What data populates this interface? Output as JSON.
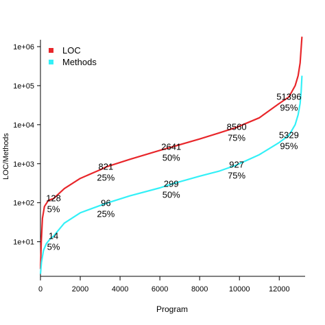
{
  "chart_data": {
    "type": "line",
    "xlabel": "Program",
    "ylabel": "LOC/Methods",
    "xlim": [
      0,
      13300
    ],
    "ylim": [
      1.3,
      1500000
    ],
    "y_scale": "log",
    "x_ticks": [
      0,
      2000,
      4000,
      6000,
      8000,
      10000,
      12000
    ],
    "x_tick_labels": [
      "0",
      "2000",
      "4000",
      "6000",
      "8000",
      "10000",
      "12000"
    ],
    "y_ticks": [
      10,
      100,
      1000,
      10000,
      100000,
      1000000
    ],
    "y_tick_labels": [
      "1e+01",
      "1e+02",
      "1e+03",
      "1e+04",
      "1e+05",
      "1e+06"
    ],
    "legend_position": "top-left",
    "series": [
      {
        "name": "LOC",
        "color": "#e8262a",
        "x": [
          0,
          40,
          100,
          200,
          400,
          657,
          1200,
          2000,
          3000,
          3286,
          4500,
          6000,
          6572,
          8000,
          9000,
          9858,
          11000,
          12000,
          12486,
          12800,
          12950,
          13050,
          13100,
          13140
        ],
        "y": [
          2,
          10,
          40,
          80,
          115,
          128,
          230,
          420,
          700,
          821,
          1300,
          2200,
          2641,
          4300,
          6200,
          8560,
          15000,
          35000,
          51396,
          100000,
          180000,
          380000,
          900000,
          1800000
        ]
      },
      {
        "name": "Methods",
        "color": "#33f0f7",
        "x": [
          0,
          50,
          150,
          300,
          500,
          657,
          1200,
          2000,
          3000,
          3286,
          4500,
          6000,
          6572,
          8000,
          9000,
          9858,
          11000,
          12000,
          12486,
          12800,
          12950,
          13050,
          13100,
          13140
        ],
        "y": [
          1.5,
          3,
          6,
          9,
          12,
          14,
          30,
          55,
          85,
          96,
          150,
          240,
          299,
          480,
          650,
          927,
          1700,
          3500,
          5329,
          10000,
          18000,
          35000,
          70000,
          180000
        ]
      }
    ],
    "annotations": [
      {
        "value": "128",
        "pct": "5%",
        "x": 657,
        "y": 128
      },
      {
        "value": "821",
        "pct": "25%",
        "x": 3286,
        "y": 821
      },
      {
        "value": "2641",
        "pct": "50%",
        "x": 6572,
        "y": 2641
      },
      {
        "value": "8560",
        "pct": "75%",
        "x": 9858,
        "y": 8560
      },
      {
        "value": "51396",
        "pct": "95%",
        "x": 12486,
        "y": 51396
      },
      {
        "value": "14",
        "pct": "5%",
        "x": 657,
        "y": 14
      },
      {
        "value": "96",
        "pct": "25%",
        "x": 3286,
        "y": 96
      },
      {
        "value": "299",
        "pct": "50%",
        "x": 6572,
        "y": 299
      },
      {
        "value": "927",
        "pct": "75%",
        "x": 9858,
        "y": 927
      },
      {
        "value": "5329",
        "pct": "95%",
        "x": 12486,
        "y": 5329
      }
    ]
  }
}
